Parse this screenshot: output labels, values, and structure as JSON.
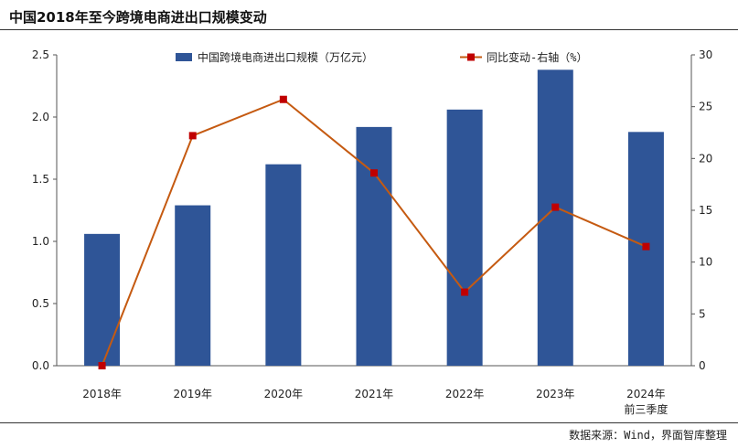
{
  "title": "中国2018年至今跨境电商进出口规模变动",
  "source": "数据来源：Wind，界面智库整理",
  "colors": {
    "bar": "#2F5597",
    "line": "#C55A11",
    "marker": "#C00000"
  },
  "chart_data": {
    "type": "bar+line",
    "title": "中国2018年至今跨境电商进出口规模变动",
    "categories": [
      {
        "line1": "2018年",
        "line2": ""
      },
      {
        "line1": "2019年",
        "line2": ""
      },
      {
        "line1": "2020年",
        "line2": ""
      },
      {
        "line1": "2021年",
        "line2": ""
      },
      {
        "line1": "2022年",
        "line2": ""
      },
      {
        "line1": "2023年",
        "line2": ""
      },
      {
        "line1": "2024年",
        "line2": "前三季度"
      }
    ],
    "series": [
      {
        "name": "中国跨境电商进出口规模（万亿元）",
        "type": "bar",
        "axis": "left",
        "values": [
          1.06,
          1.29,
          1.62,
          1.92,
          2.06,
          2.38,
          1.88
        ]
      },
      {
        "name": "同比变动-右轴（%）",
        "type": "line",
        "axis": "right",
        "values": [
          0.0,
          22.2,
          25.7,
          18.6,
          7.1,
          15.3,
          11.5
        ]
      }
    ],
    "y_left": {
      "min": 0,
      "max": 2.5,
      "ticks": [
        "0.0",
        "0.5",
        "1.0",
        "1.5",
        "2.0",
        "2.5"
      ]
    },
    "y_right": {
      "min": 0,
      "max": 30,
      "ticks": [
        "0",
        "5",
        "10",
        "15",
        "20",
        "25",
        "30"
      ]
    },
    "legend": {
      "position": "top"
    }
  }
}
